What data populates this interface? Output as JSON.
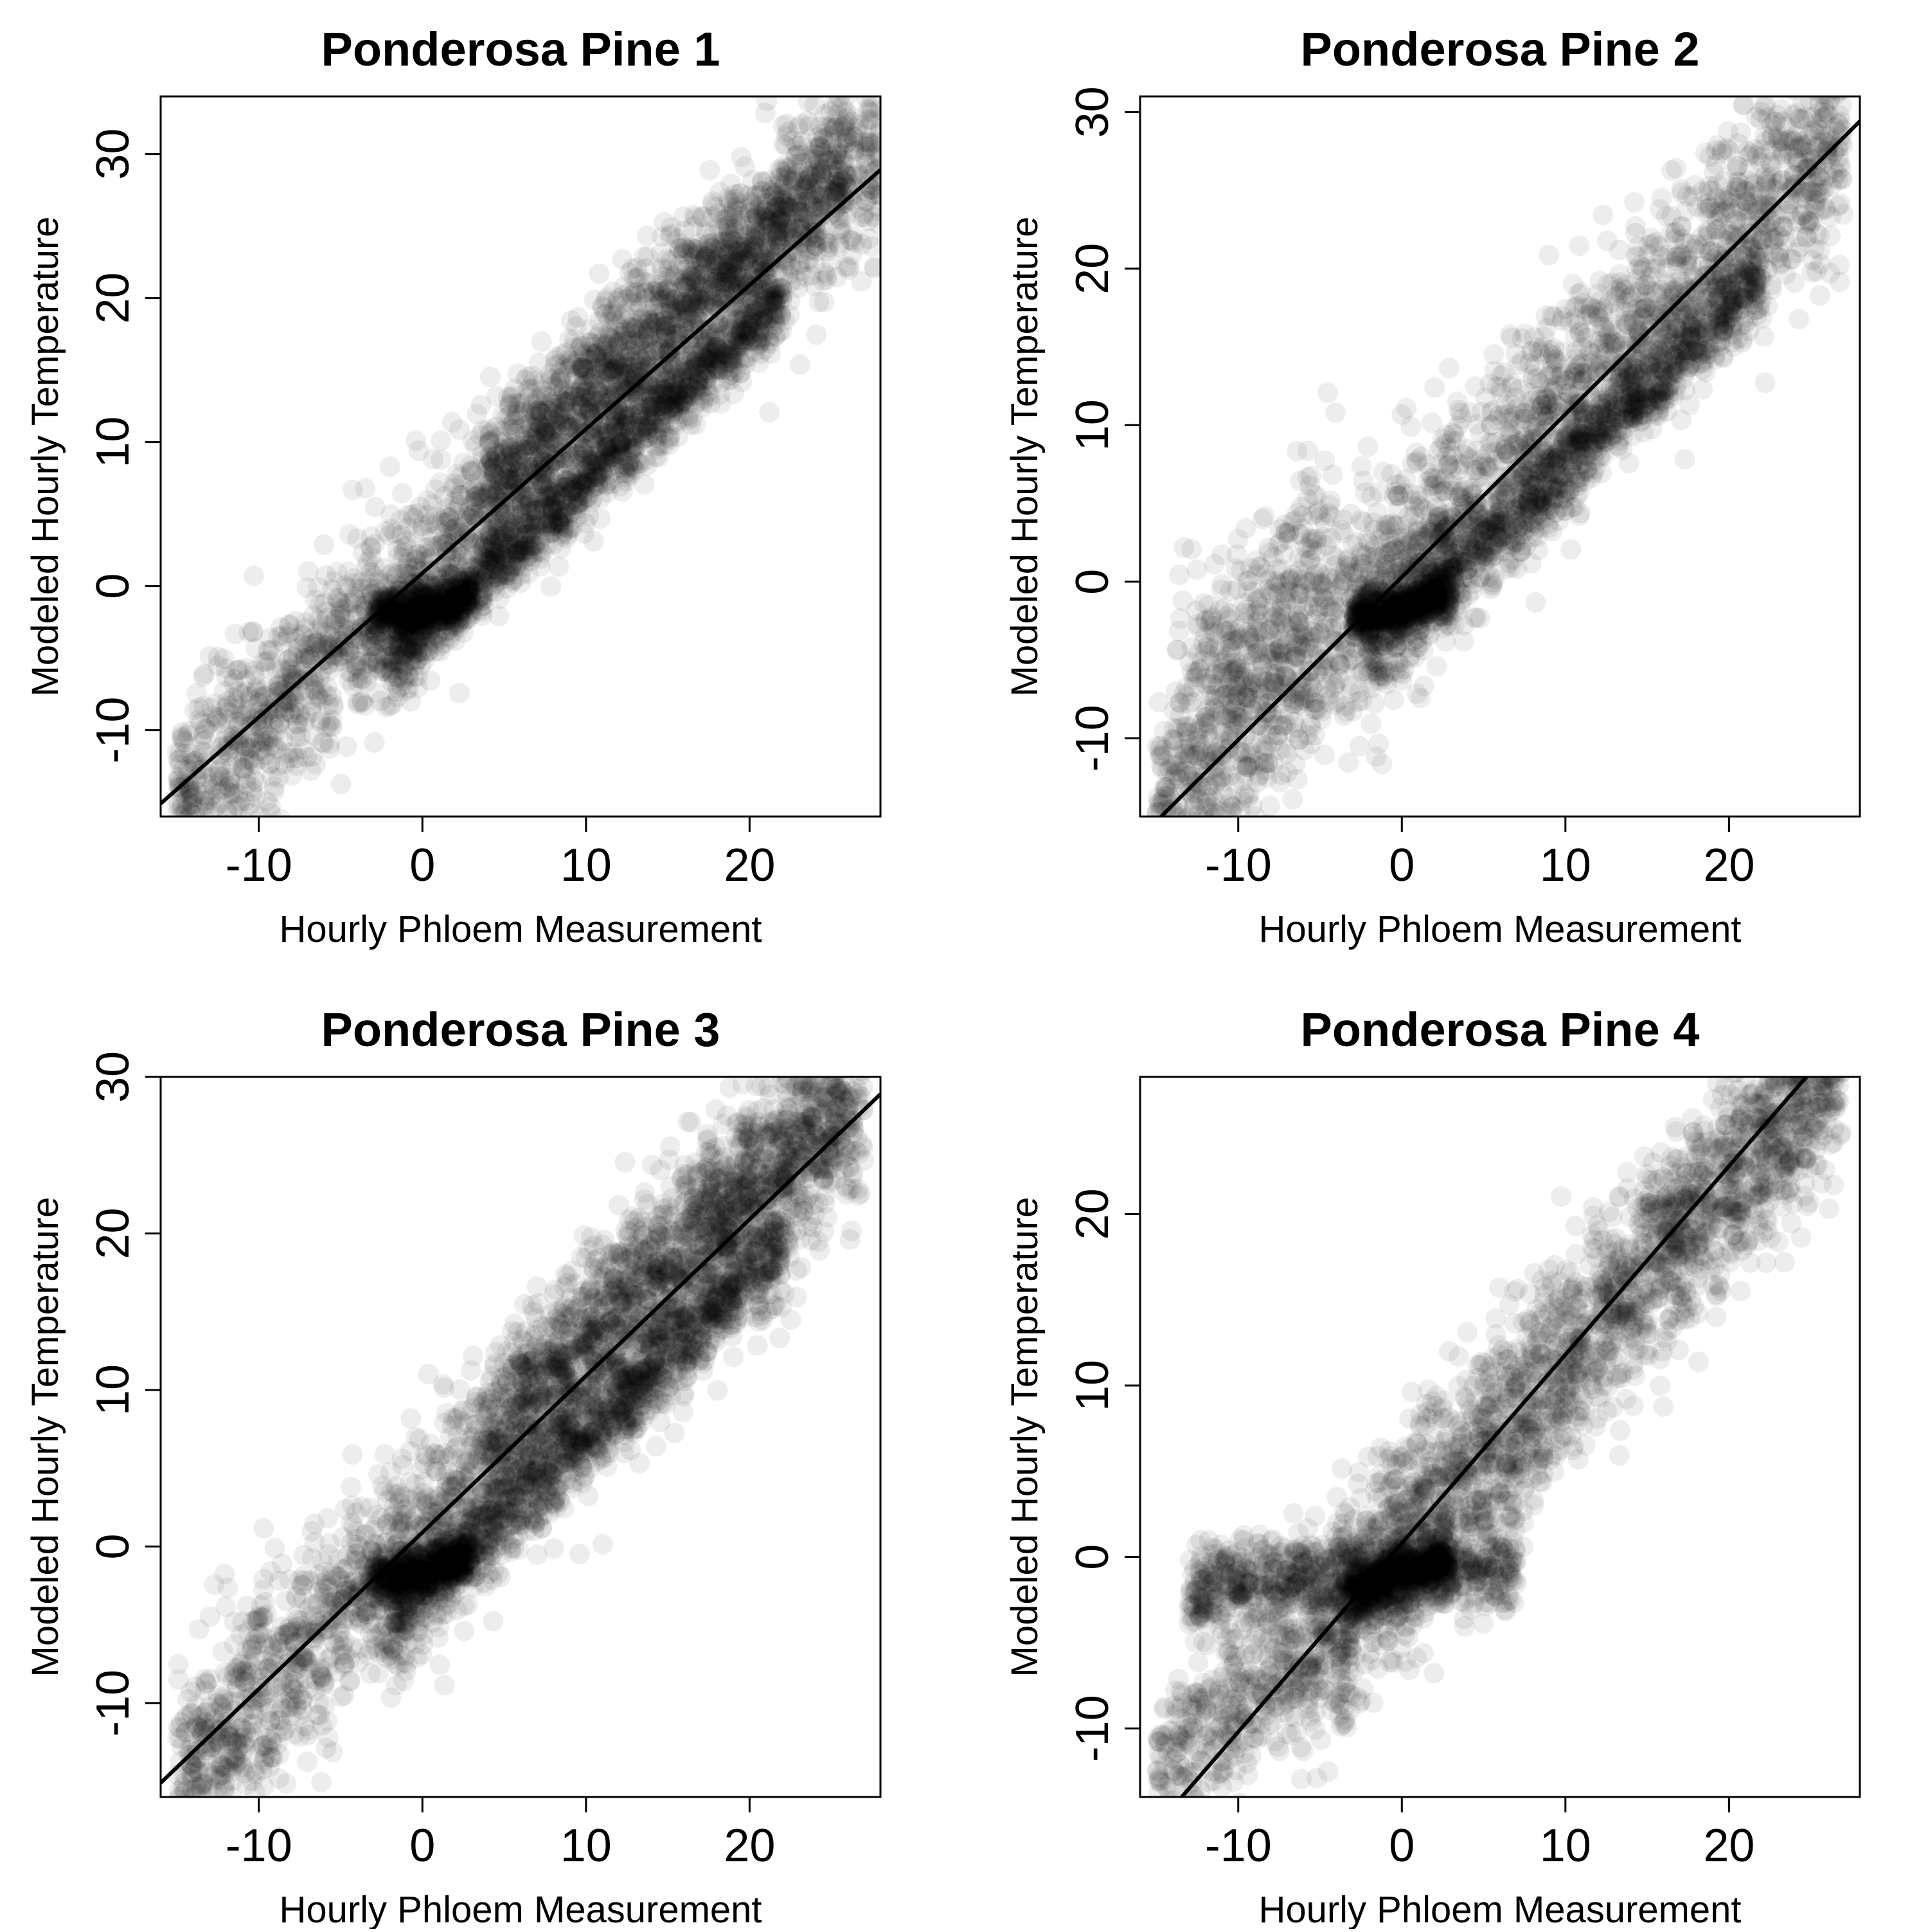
{
  "chart_data": [
    {
      "type": "scatter",
      "title": "Ponderosa Pine 1",
      "xlabel": "Hourly Phloem Measurement",
      "ylabel": "Modeled Hourly Temperature",
      "xlim": [
        -16,
        28
      ],
      "ylim": [
        -16,
        34
      ],
      "xticks": [
        -10,
        0,
        10,
        20
      ],
      "yticks": [
        -10,
        0,
        10,
        20,
        30
      ],
      "grid": false,
      "point_color": "#000000",
      "point_opacity": 0.07,
      "line": {
        "intercept": 0.9,
        "slope": 1.0,
        "color": "#000000"
      },
      "clusters": [
        {
          "x": [
            -15,
            28
          ],
          "slope": 1.05,
          "intercept": 1.0,
          "spread": 3.2,
          "count": 2200
        },
        {
          "x": [
            -2,
            22
          ],
          "slope": 1.05,
          "intercept": -3.3,
          "spread": 1.3,
          "count": 1200
        },
        {
          "x": [
            -3,
            3
          ],
          "slope": 0.25,
          "intercept": -1.5,
          "spread": 0.8,
          "count": 500
        },
        {
          "x": [
            4,
            26
          ],
          "slope": 1.05,
          "intercept": 3.0,
          "spread": 2.6,
          "count": 1100
        }
      ]
    },
    {
      "type": "scatter",
      "title": "Ponderosa Pine 2",
      "xlabel": "Hourly Phloem Measurement",
      "ylabel": "Modeled Hourly Temperature",
      "xlim": [
        -16,
        28
      ],
      "ylim": [
        -15,
        31
      ],
      "xticks": [
        -10,
        0,
        10,
        20
      ],
      "yticks": [
        -10,
        0,
        10,
        20,
        30
      ],
      "grid": false,
      "point_color": "#000000",
      "point_opacity": 0.07,
      "line": {
        "intercept": 0.3,
        "slope": 1.04,
        "color": "#000000"
      },
      "clusters": [
        {
          "x": [
            -15,
            27
          ],
          "slope": 1.04,
          "intercept": 1.0,
          "spread": 3.6,
          "count": 2300
        },
        {
          "x": [
            -2,
            22
          ],
          "slope": 1.0,
          "intercept": -2.6,
          "spread": 1.4,
          "count": 1200
        },
        {
          "x": [
            -3,
            3
          ],
          "slope": 0.25,
          "intercept": -1.5,
          "spread": 0.8,
          "count": 500
        },
        {
          "x": [
            -14,
            -4
          ],
          "slope": 1.0,
          "intercept": 7.0,
          "spread": 3.0,
          "count": 250
        }
      ]
    },
    {
      "type": "scatter",
      "title": "Ponderosa Pine 3",
      "xlabel": "Hourly Phloem Measurement",
      "ylabel": "Modeled Hourly Temperature",
      "xlim": [
        -16,
        28
      ],
      "ylim": [
        -16,
        30
      ],
      "xticks": [
        -10,
        0,
        10,
        20
      ],
      "yticks": [
        -10,
        0,
        10,
        20,
        30
      ],
      "grid": false,
      "point_color": "#000000",
      "point_opacity": 0.07,
      "line": {
        "intercept": 0.9,
        "slope": 1.0,
        "color": "#000000"
      },
      "clusters": [
        {
          "x": [
            -15,
            27
          ],
          "slope": 1.03,
          "intercept": 1.0,
          "spread": 3.4,
          "count": 2300
        },
        {
          "x": [
            -2,
            22
          ],
          "slope": 1.0,
          "intercept": -3.0,
          "spread": 1.4,
          "count": 1200
        },
        {
          "x": [
            -3,
            3
          ],
          "slope": 0.25,
          "intercept": -1.5,
          "spread": 0.8,
          "count": 500
        },
        {
          "x": [
            4,
            26
          ],
          "slope": 1.0,
          "intercept": 3.2,
          "spread": 2.6,
          "count": 1000
        }
      ]
    },
    {
      "type": "scatter",
      "title": "Ponderosa Pine 4",
      "xlabel": "Hourly Phloem Measurement",
      "ylabel": "Modeled Hourly Temperature",
      "xlim": [
        -16,
        28
      ],
      "ylim": [
        -14,
        28
      ],
      "xticks": [
        -10,
        0,
        10,
        20
      ],
      "yticks": [
        -10,
        0,
        10,
        20
      ],
      "grid": false,
      "point_color": "#000000",
      "point_opacity": 0.07,
      "line": {
        "intercept": 0.8,
        "slope": 1.1,
        "color": "#000000"
      },
      "clusters": [
        {
          "x": [
            -4,
            27
          ],
          "slope": 1.05,
          "intercept": 1.0,
          "spread": 3.0,
          "count": 2300
        },
        {
          "x": [
            -13,
            7
          ],
          "slope": 0.05,
          "intercept": -1.0,
          "spread": 1.3,
          "count": 900
        },
        {
          "x": [
            -15,
            -3
          ],
          "slope": 0.7,
          "intercept": -2.0,
          "spread": 2.5,
          "count": 500
        },
        {
          "x": [
            -3,
            3
          ],
          "slope": 0.3,
          "intercept": -1.0,
          "spread": 0.8,
          "count": 500
        }
      ]
    }
  ]
}
